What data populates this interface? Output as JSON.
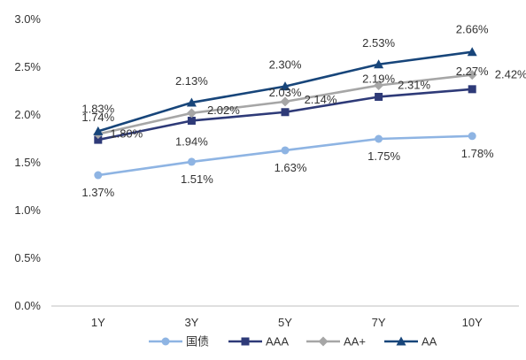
{
  "chart_data": {
    "type": "line",
    "categories": [
      "1Y",
      "3Y",
      "5Y",
      "7Y",
      "10Y"
    ],
    "ylim": [
      0.0,
      3.0
    ],
    "yticks": [
      0.0,
      0.5,
      1.0,
      1.5,
      2.0,
      2.5,
      3.0
    ],
    "ytick_labels": [
      "0.0%",
      "0.5%",
      "1.0%",
      "1.5%",
      "2.0%",
      "2.5%",
      "3.0%"
    ],
    "grid": false,
    "legend_position": "bottom",
    "series": [
      {
        "name": "国债",
        "color": "#8eb4e3",
        "marker": "circle",
        "values": [
          1.37,
          1.51,
          1.63,
          1.75,
          1.78
        ],
        "labels": [
          "1.37%",
          "1.51%",
          "1.63%",
          "1.75%",
          "1.78%"
        ]
      },
      {
        "name": "AAA",
        "color": "#2e3a78",
        "marker": "square",
        "values": [
          1.74,
          1.94,
          2.03,
          2.19,
          2.27
        ],
        "labels": [
          "1.74%",
          "1.94%",
          "2.03%",
          "2.19%",
          "2.27%"
        ]
      },
      {
        "name": "AA+",
        "color": "#a6a6a6",
        "marker": "diamond",
        "values": [
          1.8,
          2.02,
          2.14,
          2.31,
          2.42
        ],
        "labels": [
          "1.80%",
          "2.02%",
          "2.14%",
          "2.31%",
          "2.42%"
        ]
      },
      {
        "name": "AA",
        "color": "#17457a",
        "marker": "triangle",
        "values": [
          1.83,
          2.13,
          2.3,
          2.53,
          2.66
        ],
        "labels": [
          "1.83%",
          "2.13%",
          "2.30%",
          "2.53%",
          "2.66%"
        ]
      }
    ]
  }
}
